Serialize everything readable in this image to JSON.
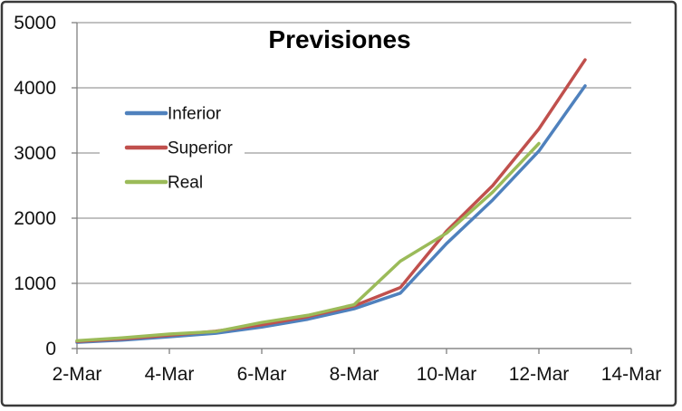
{
  "window": {
    "background": "#ffffff",
    "border_color": "#3a3a3a"
  },
  "chart_data": {
    "type": "line",
    "title": "Previsiones",
    "x": [
      "2-Mar",
      "3-Mar",
      "4-Mar",
      "5-Mar",
      "6-Mar",
      "7-Mar",
      "8-Mar",
      "9-Mar",
      "10-Mar",
      "11-Mar",
      "12-Mar",
      "13-Mar",
      "14-Mar"
    ],
    "x_tick_labels": [
      "2-Mar",
      "4-Mar",
      "6-Mar",
      "8-Mar",
      "10-Mar",
      "12-Mar",
      "14-Mar"
    ],
    "x_tick_every": 2,
    "y_ticks": [
      0,
      1000,
      2000,
      3000,
      4000,
      5000
    ],
    "ylim": [
      0,
      5000
    ],
    "xlabel": "",
    "ylabel": "",
    "grid": "horizontal",
    "legend_position": "inside-left",
    "legend_entries": [
      "Inferior",
      "Superior",
      "Real"
    ],
    "series": [
      {
        "name": "Inferior",
        "color": "#4F81BD",
        "values": [
          95,
          130,
          180,
          235,
          330,
          450,
          610,
          850,
          1610,
          2280,
          3030,
          4030
        ]
      },
      {
        "name": "Superior",
        "color": "#C0504D",
        "values": [
          110,
          150,
          205,
          265,
          365,
          490,
          655,
          935,
          1800,
          2500,
          3370,
          4430
        ]
      },
      {
        "name": "Real",
        "color": "#9BBB59",
        "values": [
          120,
          165,
          222,
          260,
          400,
          510,
          673,
          1340,
          1770,
          2400,
          3146
        ]
      }
    ],
    "axis_color": "#808080",
    "gridline_color": "#9c9c9c",
    "line_width": 3.5
  }
}
